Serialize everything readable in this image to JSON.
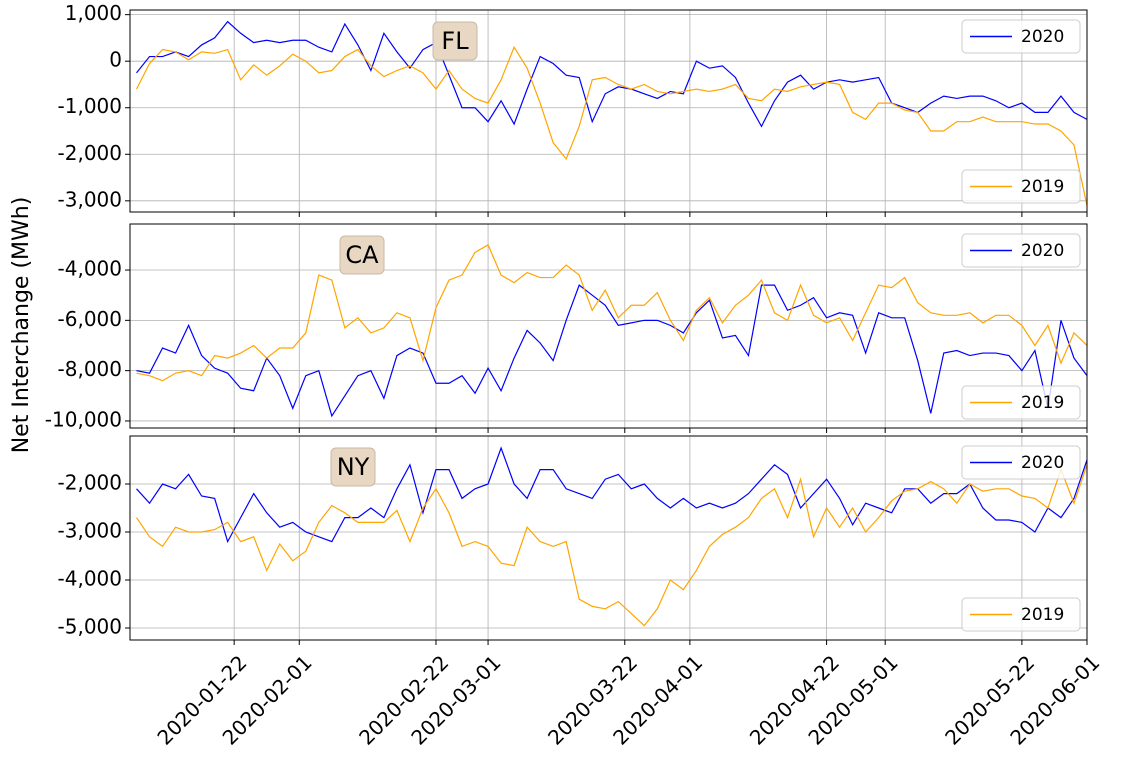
{
  "chart_data": {
    "type": "line",
    "y_label": "Net Interchange (MWh)",
    "grid": true,
    "xlim": [
      "2020-01-06",
      "2020-06-01"
    ],
    "xticks": [
      "2020-01-22",
      "2020-02-01",
      "2020-02-22",
      "2020-03-01",
      "2020-03-22",
      "2020-04-01",
      "2020-04-22",
      "2020-05-01",
      "2020-05-22",
      "2020-06-01"
    ],
    "x": [
      "2020-01-07",
      "2020-01-09",
      "2020-01-11",
      "2020-01-13",
      "2020-01-15",
      "2020-01-17",
      "2020-01-19",
      "2020-01-21",
      "2020-01-23",
      "2020-01-25",
      "2020-01-27",
      "2020-01-29",
      "2020-01-31",
      "2020-02-02",
      "2020-02-04",
      "2020-02-06",
      "2020-02-08",
      "2020-02-10",
      "2020-02-12",
      "2020-02-14",
      "2020-02-16",
      "2020-02-18",
      "2020-02-20",
      "2020-02-22",
      "2020-02-24",
      "2020-02-26",
      "2020-02-28",
      "2020-03-01",
      "2020-03-03",
      "2020-03-05",
      "2020-03-07",
      "2020-03-09",
      "2020-03-11",
      "2020-03-13",
      "2020-03-15",
      "2020-03-17",
      "2020-03-19",
      "2020-03-21",
      "2020-03-23",
      "2020-03-25",
      "2020-03-27",
      "2020-03-29",
      "2020-03-31",
      "2020-04-02",
      "2020-04-04",
      "2020-04-06",
      "2020-04-08",
      "2020-04-10",
      "2020-04-12",
      "2020-04-14",
      "2020-04-16",
      "2020-04-18",
      "2020-04-20",
      "2020-04-22",
      "2020-04-24",
      "2020-04-26",
      "2020-04-28",
      "2020-04-30",
      "2020-05-02",
      "2020-05-04",
      "2020-05-06",
      "2020-05-08",
      "2020-05-10",
      "2020-05-12",
      "2020-05-14",
      "2020-05-16",
      "2020-05-18",
      "2020-05-20",
      "2020-05-22",
      "2020-05-24",
      "2020-05-26",
      "2020-05-28",
      "2020-05-30",
      "2020-06-01"
    ],
    "panels": [
      {
        "title": "FL",
        "ylim": [
          -3240,
          1100
        ],
        "yticks": [
          {
            "value": -3000,
            "label": "-3,000"
          },
          {
            "value": -2000,
            "label": "-2,000"
          },
          {
            "value": -1000,
            "label": "-1,000"
          },
          0,
          {
            "value": 1000,
            "label": "1,000"
          }
        ],
        "series": [
          {
            "name": "2020",
            "color": "#0000ff",
            "legend_loc": "upper right",
            "values": [
              -250,
              100,
              100,
              200,
              100,
              350,
              500,
              850,
              600,
              400,
              450,
              400,
              450,
              450,
              300,
              200,
              800,
              350,
              -200,
              600,
              200,
              -150,
              250,
              400,
              -300,
              -1000,
              -1000,
              -1300,
              -850,
              -1350,
              -600,
              100,
              -50,
              -300,
              -350,
              -1300,
              -700,
              -550,
              -600,
              -700,
              -800,
              -650,
              -700,
              0,
              -150,
              -100,
              -350,
              -900,
              -1400,
              -850,
              -450,
              -300,
              -600,
              -450,
              -400,
              -450,
              -400,
              -350,
              -900,
              -1000,
              -1100,
              -900,
              -750,
              -800,
              -750,
              -750,
              -850,
              -1000,
              -900,
              -1100,
              -1100,
              -750,
              -1100,
              -1250
            ]
          },
          {
            "name": "2019",
            "color": "#ffa500",
            "legend_loc": "lower right",
            "values": [
              -600,
              -50,
              250,
              200,
              30,
              200,
              170,
              250,
              -400,
              -80,
              -300,
              -100,
              150,
              0,
              -250,
              -200,
              100,
              250,
              -100,
              -330,
              -200,
              -100,
              -250,
              -600,
              -200,
              -600,
              -800,
              -900,
              -400,
              300,
              -150,
              -900,
              -1750,
              -2100,
              -1400,
              -400,
              -350,
              -500,
              -600,
              -500,
              -650,
              -700,
              -650,
              -600,
              -650,
              -600,
              -500,
              -800,
              -850,
              -600,
              -650,
              -550,
              -500,
              -450,
              -500,
              -1100,
              -1250,
              -900,
              -900,
              -1050,
              -1100,
              -1500,
              -1500,
              -1300,
              -1300,
              -1200,
              -1300,
              -1300,
              -1300,
              -1350,
              -1350,
              -1500,
              -1800,
              -3100
            ]
          }
        ]
      },
      {
        "title": "CA",
        "ylim": [
          -10280,
          -2170
        ],
        "yticks": [
          {
            "value": -10000,
            "label": "-10,000"
          },
          {
            "value": -8000,
            "label": "-8,000"
          },
          {
            "value": -6000,
            "label": "-6,000"
          },
          {
            "value": -4000,
            "label": "-4,000"
          }
        ],
        "series": [
          {
            "name": "2020",
            "color": "#0000ff",
            "legend_loc": "upper right",
            "values": [
              -8000,
              -8100,
              -7100,
              -7300,
              -6200,
              -7400,
              -7900,
              -8100,
              -8700,
              -8800,
              -7500,
              -8200,
              -9500,
              -8200,
              -8000,
              -9800,
              -9000,
              -8200,
              -8000,
              -9100,
              -7400,
              -7100,
              -7300,
              -8500,
              -8500,
              -8200,
              -8900,
              -7900,
              -8800,
              -7500,
              -6400,
              -6900,
              -7600,
              -6000,
              -4600,
              -5000,
              -5400,
              -6200,
              -6100,
              -6000,
              -6000,
              -6200,
              -6500,
              -5700,
              -5200,
              -6700,
              -6600,
              -7400,
              -4600,
              -4600,
              -5600,
              -5400,
              -5100,
              -5900,
              -5700,
              -5800,
              -7300,
              -5700,
              -5900,
              -5900,
              -7600,
              -9700,
              -7300,
              -7200,
              -7400,
              -7300,
              -7300,
              -7400,
              -8000,
              -7200,
              -9500,
              -6000,
              -7500,
              -8200
            ]
          },
          {
            "name": "2019",
            "color": "#ffa500",
            "legend_loc": "lower right",
            "values": [
              -8100,
              -8200,
              -8400,
              -8100,
              -8000,
              -8200,
              -7400,
              -7500,
              -7300,
              -7000,
              -7500,
              -7100,
              -7100,
              -6500,
              -4200,
              -4400,
              -6300,
              -5900,
              -6500,
              -6300,
              -5700,
              -5900,
              -7600,
              -5500,
              -4400,
              -4200,
              -3300,
              -3000,
              -4200,
              -4500,
              -4100,
              -4300,
              -4300,
              -3800,
              -4200,
              -5600,
              -4800,
              -5900,
              -5400,
              -5400,
              -4900,
              -6000,
              -6800,
              -5600,
              -5100,
              -6100,
              -5400,
              -5000,
              -4400,
              -5700,
              -6000,
              -4600,
              -5800,
              -6100,
              -5900,
              -6800,
              -5700,
              -4600,
              -4700,
              -4300,
              -5300,
              -5700,
              -5800,
              -5800,
              -5700,
              -6100,
              -5800,
              -5800,
              -6200,
              -7000,
              -6200,
              -7700,
              -6500,
              -7000
            ]
          }
        ]
      },
      {
        "title": "NY",
        "ylim": [
          -5250,
          -1000
        ],
        "yticks": [
          {
            "value": -5000,
            "label": "-5,000"
          },
          {
            "value": -4000,
            "label": "-4,000"
          },
          {
            "value": -3000,
            "label": "-3,000"
          },
          {
            "value": -2000,
            "label": "-2,000"
          }
        ],
        "series": [
          {
            "name": "2020",
            "color": "#0000ff",
            "legend_loc": "upper right",
            "values": [
              -2100,
              -2400,
              -2000,
              -2100,
              -1800,
              -2250,
              -2300,
              -3200,
              -2700,
              -2200,
              -2600,
              -2900,
              -2800,
              -3000,
              -3100,
              -3200,
              -2700,
              -2700,
              -2500,
              -2700,
              -2100,
              -1600,
              -2600,
              -1700,
              -1700,
              -2300,
              -2100,
              -2000,
              -1250,
              -2000,
              -2300,
              -1700,
              -1700,
              -2100,
              -2200,
              -2300,
              -1900,
              -1800,
              -2100,
              -2000,
              -2300,
              -2500,
              -2300,
              -2500,
              -2400,
              -2500,
              -2400,
              -2200,
              -1900,
              -1600,
              -1800,
              -2500,
              -2200,
              -1900,
              -2300,
              -2850,
              -2400,
              -2500,
              -2600,
              -2100,
              -2100,
              -2400,
              -2200,
              -2200,
              -2000,
              -2500,
              -2750,
              -2750,
              -2800,
              -3000,
              -2500,
              -2700,
              -2300,
              -1500
            ]
          },
          {
            "name": "2019",
            "color": "#ffa500",
            "legend_loc": "lower right",
            "values": [
              -2700,
              -3100,
              -3300,
              -2900,
              -3000,
              -3000,
              -2950,
              -2800,
              -3200,
              -3100,
              -3800,
              -3250,
              -3600,
              -3400,
              -2800,
              -2450,
              -2600,
              -2800,
              -2800,
              -2800,
              -2550,
              -3200,
              -2500,
              -2100,
              -2600,
              -3300,
              -3200,
              -3300,
              -3650,
              -3700,
              -2900,
              -3200,
              -3300,
              -3200,
              -4400,
              -4550,
              -4600,
              -4450,
              -4700,
              -4950,
              -4600,
              -4000,
              -4200,
              -3800,
              -3300,
              -3050,
              -2900,
              -2700,
              -2300,
              -2100,
              -2700,
              -1900,
              -3100,
              -2500,
              -2900,
              -2500,
              -3000,
              -2700,
              -2350,
              -2150,
              -2100,
              -1950,
              -2100,
              -2400,
              -2000,
              -2150,
              -2100,
              -2100,
              -2250,
              -2300,
              -2500,
              -1700,
              -2400,
              -1600
            ]
          }
        ]
      }
    ]
  }
}
